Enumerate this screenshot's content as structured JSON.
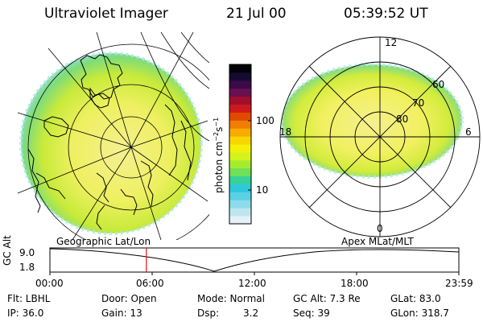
{
  "header": {
    "title": "Ultraviolet Imager",
    "date": "21 Jul 00",
    "time": "05:39:52 UT"
  },
  "left_panel": {
    "caption": "Geographic Lat/Lon"
  },
  "right_panel": {
    "caption": "Apex MLat/MLT",
    "lat_labels": [
      "60",
      "70",
      "80"
    ],
    "mlt_labels": [
      "12",
      "18",
      "6",
      "0"
    ]
  },
  "colorbar": {
    "unit_label": "photon cm",
    "unit_exp1": "−2",
    "unit_s": "s",
    "unit_exp2": "−1",
    "tick_labels": [
      "100",
      "10"
    ],
    "colors": [
      "#e6f0f6",
      "#bfe6f0",
      "#8edcea",
      "#5ad2e4",
      "#2ec8dc",
      "#36d29a",
      "#6ee05a",
      "#a6ec2e",
      "#d4f21c",
      "#f4f00a",
      "#f8d600",
      "#f8ac00",
      "#f07e00",
      "#e04a00",
      "#cc1a1a",
      "#a0102c",
      "#6a1050",
      "#3a0a4a",
      "#160a30",
      "#02020a"
    ]
  },
  "alt_plot": {
    "ylabel": "GC Alt",
    "y_ticks": [
      "9.0",
      "1.8"
    ],
    "x_ticks": [
      "00:00",
      "06:00",
      "12:00",
      "18:00",
      "23:59"
    ],
    "current_time_hours": 5.66
  },
  "info": {
    "flt": "Flt: LBHL",
    "door": "Door: Open",
    "mode": "Mode: Normal",
    "gc_alt": "GC Alt: 7.3 Re",
    "glat": "GLat: 83.0",
    "ip": "IP: 36.0",
    "gain": "Gain: 13",
    "dsp_label": "Dsp:",
    "dsp_value": "3.2",
    "seq": "Seq: 39",
    "glon": "GLon: 318.7"
  }
}
